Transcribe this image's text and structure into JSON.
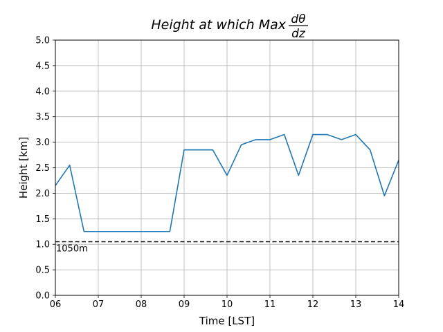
{
  "chart_data": {
    "type": "line",
    "title": {
      "prefix": "Height at which Max",
      "numerator": "dθ",
      "denominator": "dz"
    },
    "xlabel": "Time [LST]",
    "ylabel": "Height [km]",
    "xlim": [
      6,
      14
    ],
    "ylim": [
      0,
      5
    ],
    "grid": true,
    "x_ticks": [
      {
        "value": 6,
        "label": "06"
      },
      {
        "value": 7,
        "label": "07"
      },
      {
        "value": 8,
        "label": "08"
      },
      {
        "value": 9,
        "label": "09"
      },
      {
        "value": 10,
        "label": "10"
      },
      {
        "value": 11,
        "label": "11"
      },
      {
        "value": 12,
        "label": "12"
      },
      {
        "value": 13,
        "label": "13"
      },
      {
        "value": 14,
        "label": "14"
      }
    ],
    "y_ticks": [
      {
        "value": 0,
        "label": "0.0"
      },
      {
        "value": 0.5,
        "label": "0.5"
      },
      {
        "value": 1,
        "label": "1.0"
      },
      {
        "value": 1.5,
        "label": "1.5"
      },
      {
        "value": 2,
        "label": "2.0"
      },
      {
        "value": 2.5,
        "label": "2.5"
      },
      {
        "value": 3,
        "label": "3.0"
      },
      {
        "value": 3.5,
        "label": "3.5"
      },
      {
        "value": 4,
        "label": "4.0"
      },
      {
        "value": 4.5,
        "label": "4.5"
      },
      {
        "value": 5,
        "label": "5.0"
      }
    ],
    "series": [
      {
        "color": "#1f77b4",
        "x": [
          6.0,
          6.333,
          6.667,
          7.0,
          7.333,
          7.667,
          8.0,
          8.333,
          8.667,
          9.0,
          9.333,
          9.667,
          10.0,
          10.333,
          10.667,
          11.0,
          11.333,
          11.667,
          12.0,
          12.333,
          12.667,
          13.0,
          13.333,
          13.667,
          14.0
        ],
        "y": [
          2.15,
          2.55,
          1.25,
          1.25,
          1.25,
          1.25,
          1.25,
          1.25,
          1.25,
          2.85,
          2.85,
          2.85,
          2.35,
          2.95,
          3.05,
          3.05,
          3.15,
          2.35,
          3.15,
          3.15,
          3.05,
          3.15,
          2.85,
          1.95,
          2.65
        ]
      }
    ],
    "reference_line": {
      "y": 1.05,
      "style": "dashed",
      "color": "#000000",
      "label": "1050m"
    }
  }
}
